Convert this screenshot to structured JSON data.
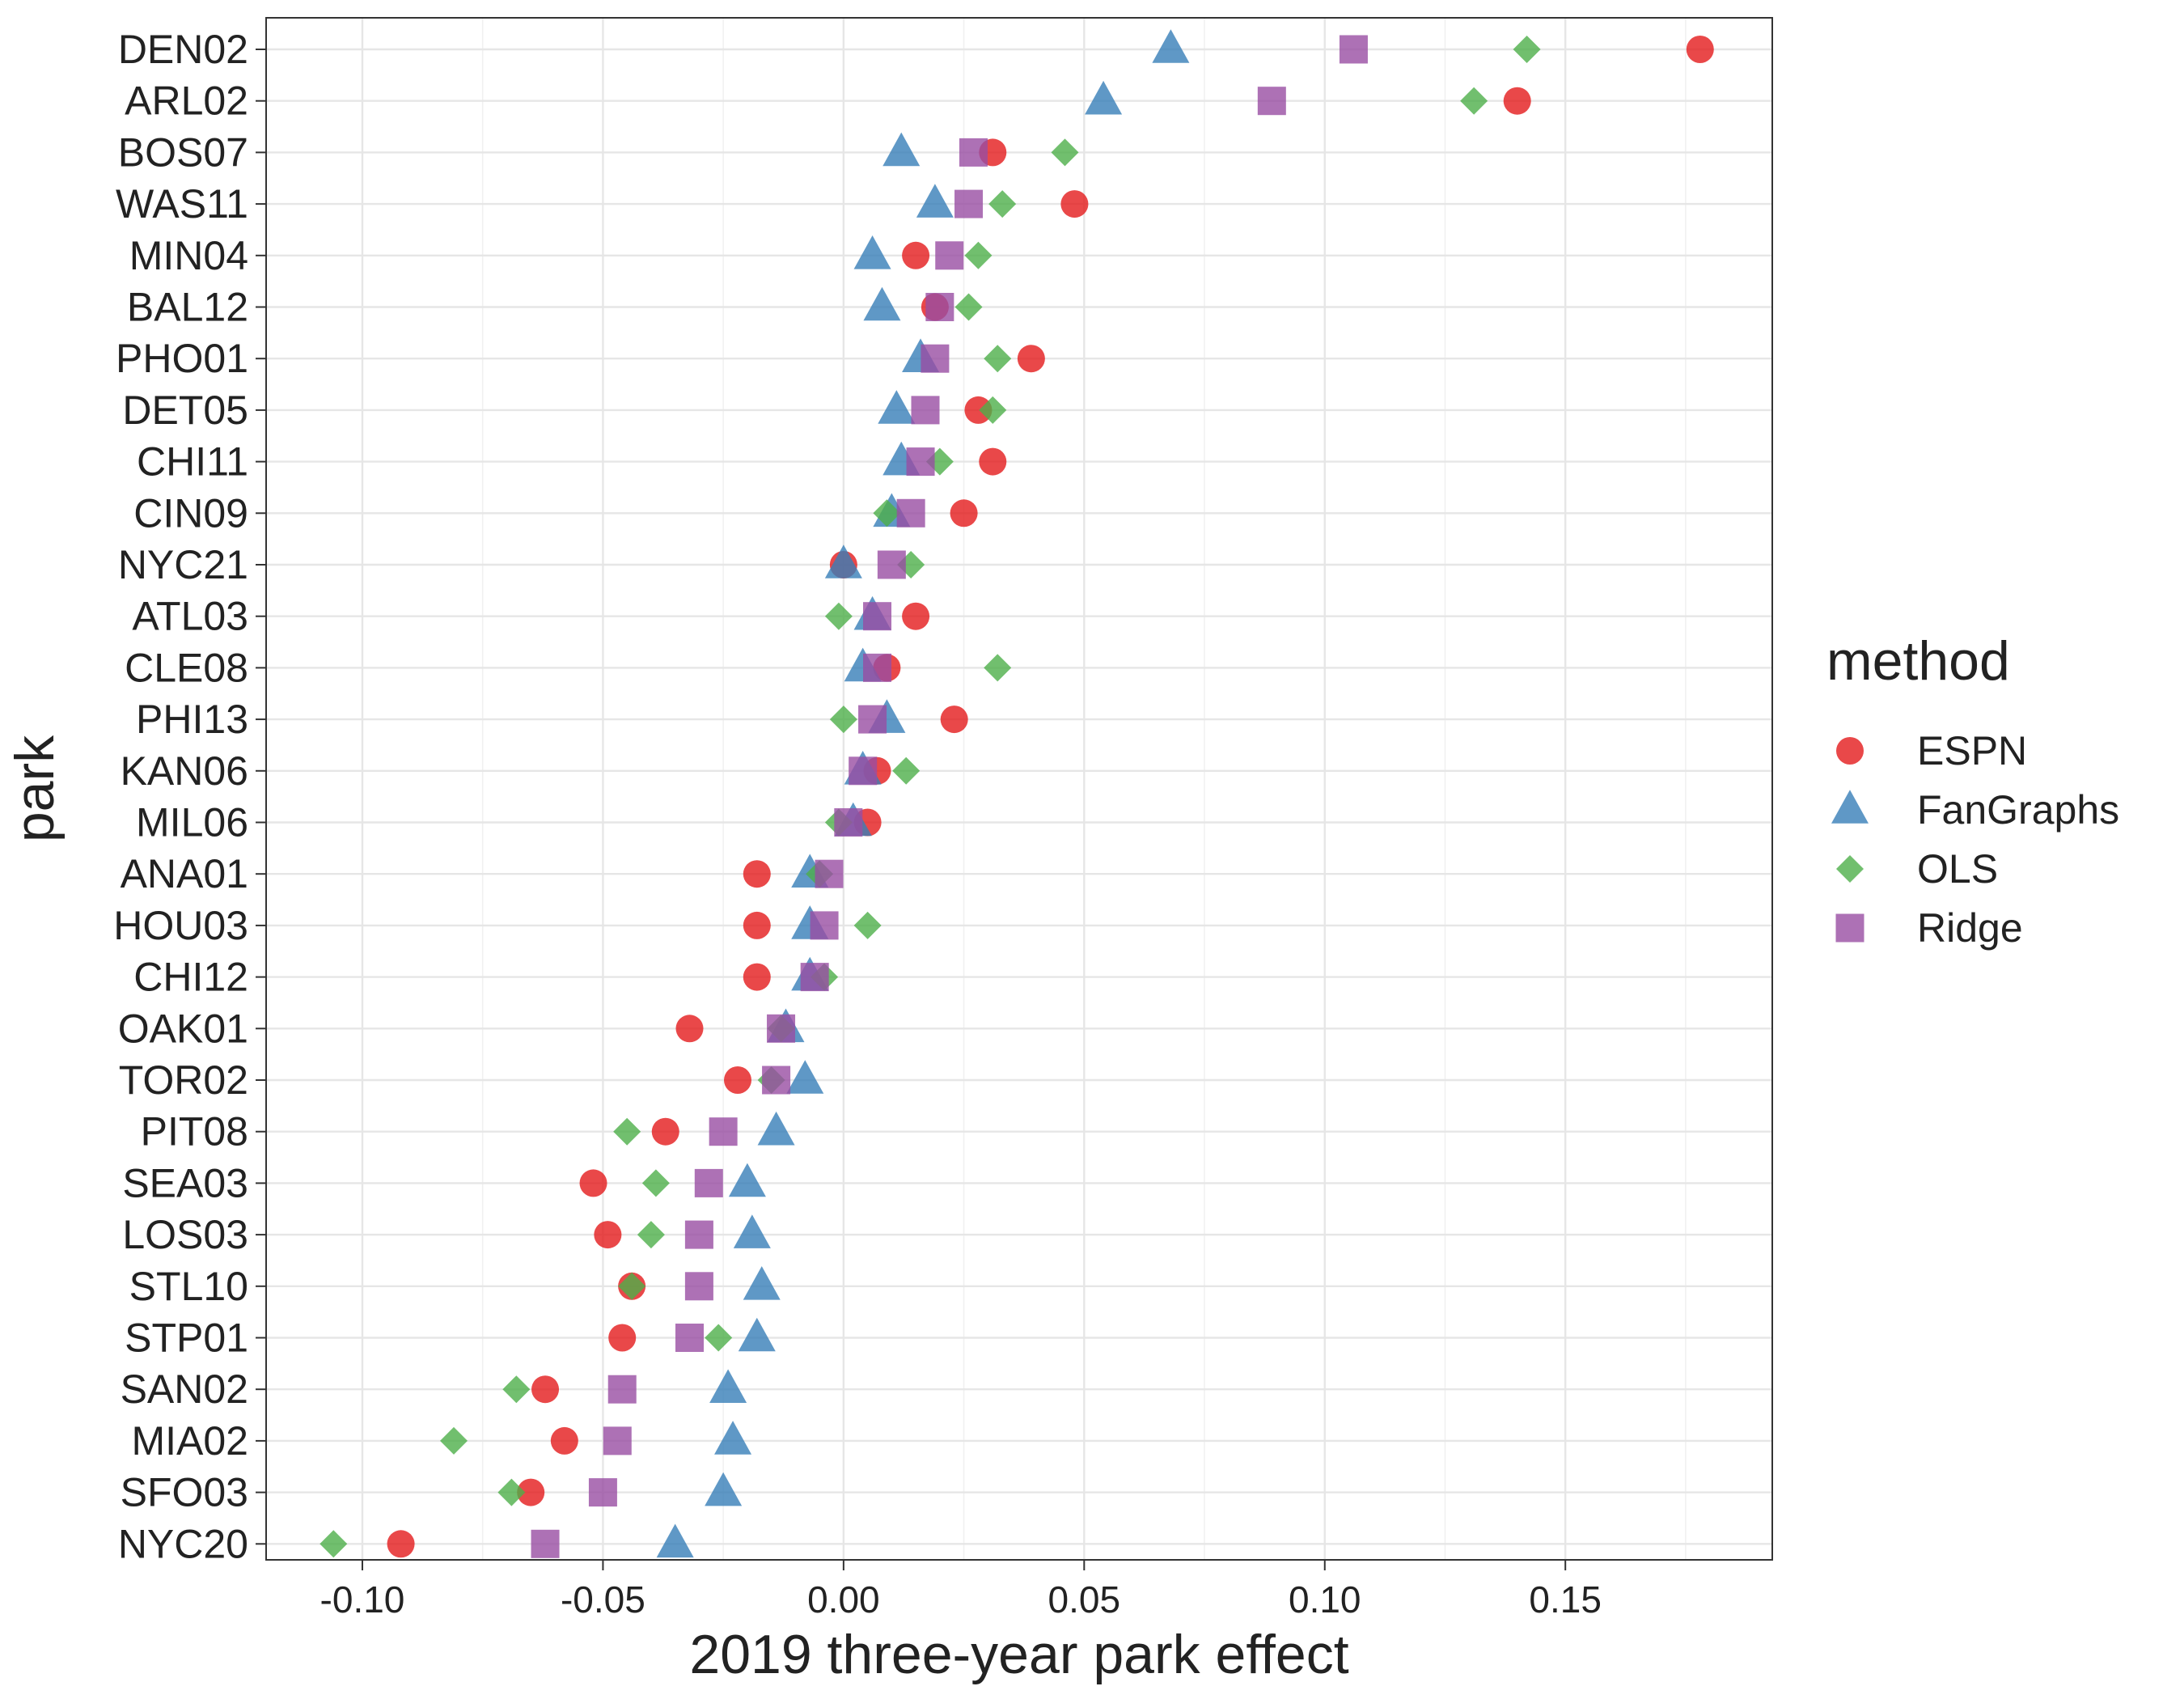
{
  "chart_data": {
    "type": "scatter",
    "title": "",
    "xlabel": "2019 three-year park effect",
    "ylabel": "park",
    "xlim": [
      -0.12,
      0.193
    ],
    "x_ticks": [
      -0.1,
      -0.05,
      0.0,
      0.05,
      0.1,
      0.15
    ],
    "x_tick_labels": [
      "-0.10",
      "-0.05",
      "0.00",
      "0.05",
      "0.10",
      "0.15"
    ],
    "grid": true,
    "legend": {
      "title": "method",
      "placement": "right"
    },
    "categories": [
      "DEN02",
      "ARL02",
      "BOS07",
      "WAS11",
      "MIN04",
      "BAL12",
      "PHO01",
      "DET05",
      "CHI11",
      "CIN09",
      "NYC21",
      "ATL03",
      "CLE08",
      "PHI13",
      "KAN06",
      "MIL06",
      "ANA01",
      "HOU03",
      "CHI12",
      "OAK01",
      "TOR02",
      "PIT08",
      "SEA03",
      "LOS03",
      "STL10",
      "STP01",
      "SAN02",
      "MIA02",
      "SFO03",
      "NYC20"
    ],
    "series": [
      {
        "name": "ESPN",
        "color": "#E41A1C",
        "shape": "circle",
        "values": [
          0.178,
          0.14,
          0.031,
          0.048,
          0.015,
          0.019,
          0.039,
          0.028,
          0.031,
          0.025,
          0.0,
          0.015,
          0.009,
          0.023,
          0.007,
          0.005,
          -0.018,
          -0.018,
          -0.018,
          -0.032,
          -0.022,
          -0.037,
          -0.052,
          -0.049,
          -0.044,
          -0.046,
          -0.062,
          -0.058,
          -0.065,
          -0.092
        ]
      },
      {
        "name": "FanGraphs",
        "color": "#377EB8",
        "shape": "triangle",
        "values": [
          0.068,
          0.054,
          0.012,
          0.019,
          0.006,
          0.008,
          0.016,
          0.011,
          0.012,
          0.01,
          0.0,
          0.006,
          0.004,
          0.009,
          0.004,
          0.002,
          -0.007,
          -0.007,
          -0.007,
          -0.012,
          -0.008,
          -0.014,
          -0.02,
          -0.019,
          -0.017,
          -0.018,
          -0.024,
          -0.023,
          -0.025,
          -0.035
        ]
      },
      {
        "name": "OLS",
        "color": "#4DAF4A",
        "shape": "diamond",
        "values": [
          0.142,
          0.131,
          0.046,
          0.033,
          0.028,
          0.026,
          0.032,
          0.031,
          0.02,
          0.009,
          0.014,
          -0.001,
          0.032,
          0.0,
          0.013,
          -0.001,
          -0.005,
          0.005,
          -0.004,
          -0.013,
          -0.015,
          -0.045,
          -0.039,
          -0.04,
          -0.044,
          -0.026,
          -0.068,
          -0.081,
          -0.069,
          -0.106
        ]
      },
      {
        "name": "Ridge",
        "color": "#984EA3",
        "shape": "square",
        "values": [
          0.106,
          0.089,
          0.027,
          0.026,
          0.022,
          0.02,
          0.019,
          0.017,
          0.016,
          0.014,
          0.01,
          0.007,
          0.007,
          0.006,
          0.004,
          0.001,
          -0.003,
          -0.004,
          -0.006,
          -0.013,
          -0.014,
          -0.025,
          -0.028,
          -0.03,
          -0.03,
          -0.032,
          -0.046,
          -0.047,
          -0.05,
          -0.062
        ]
      }
    ]
  }
}
